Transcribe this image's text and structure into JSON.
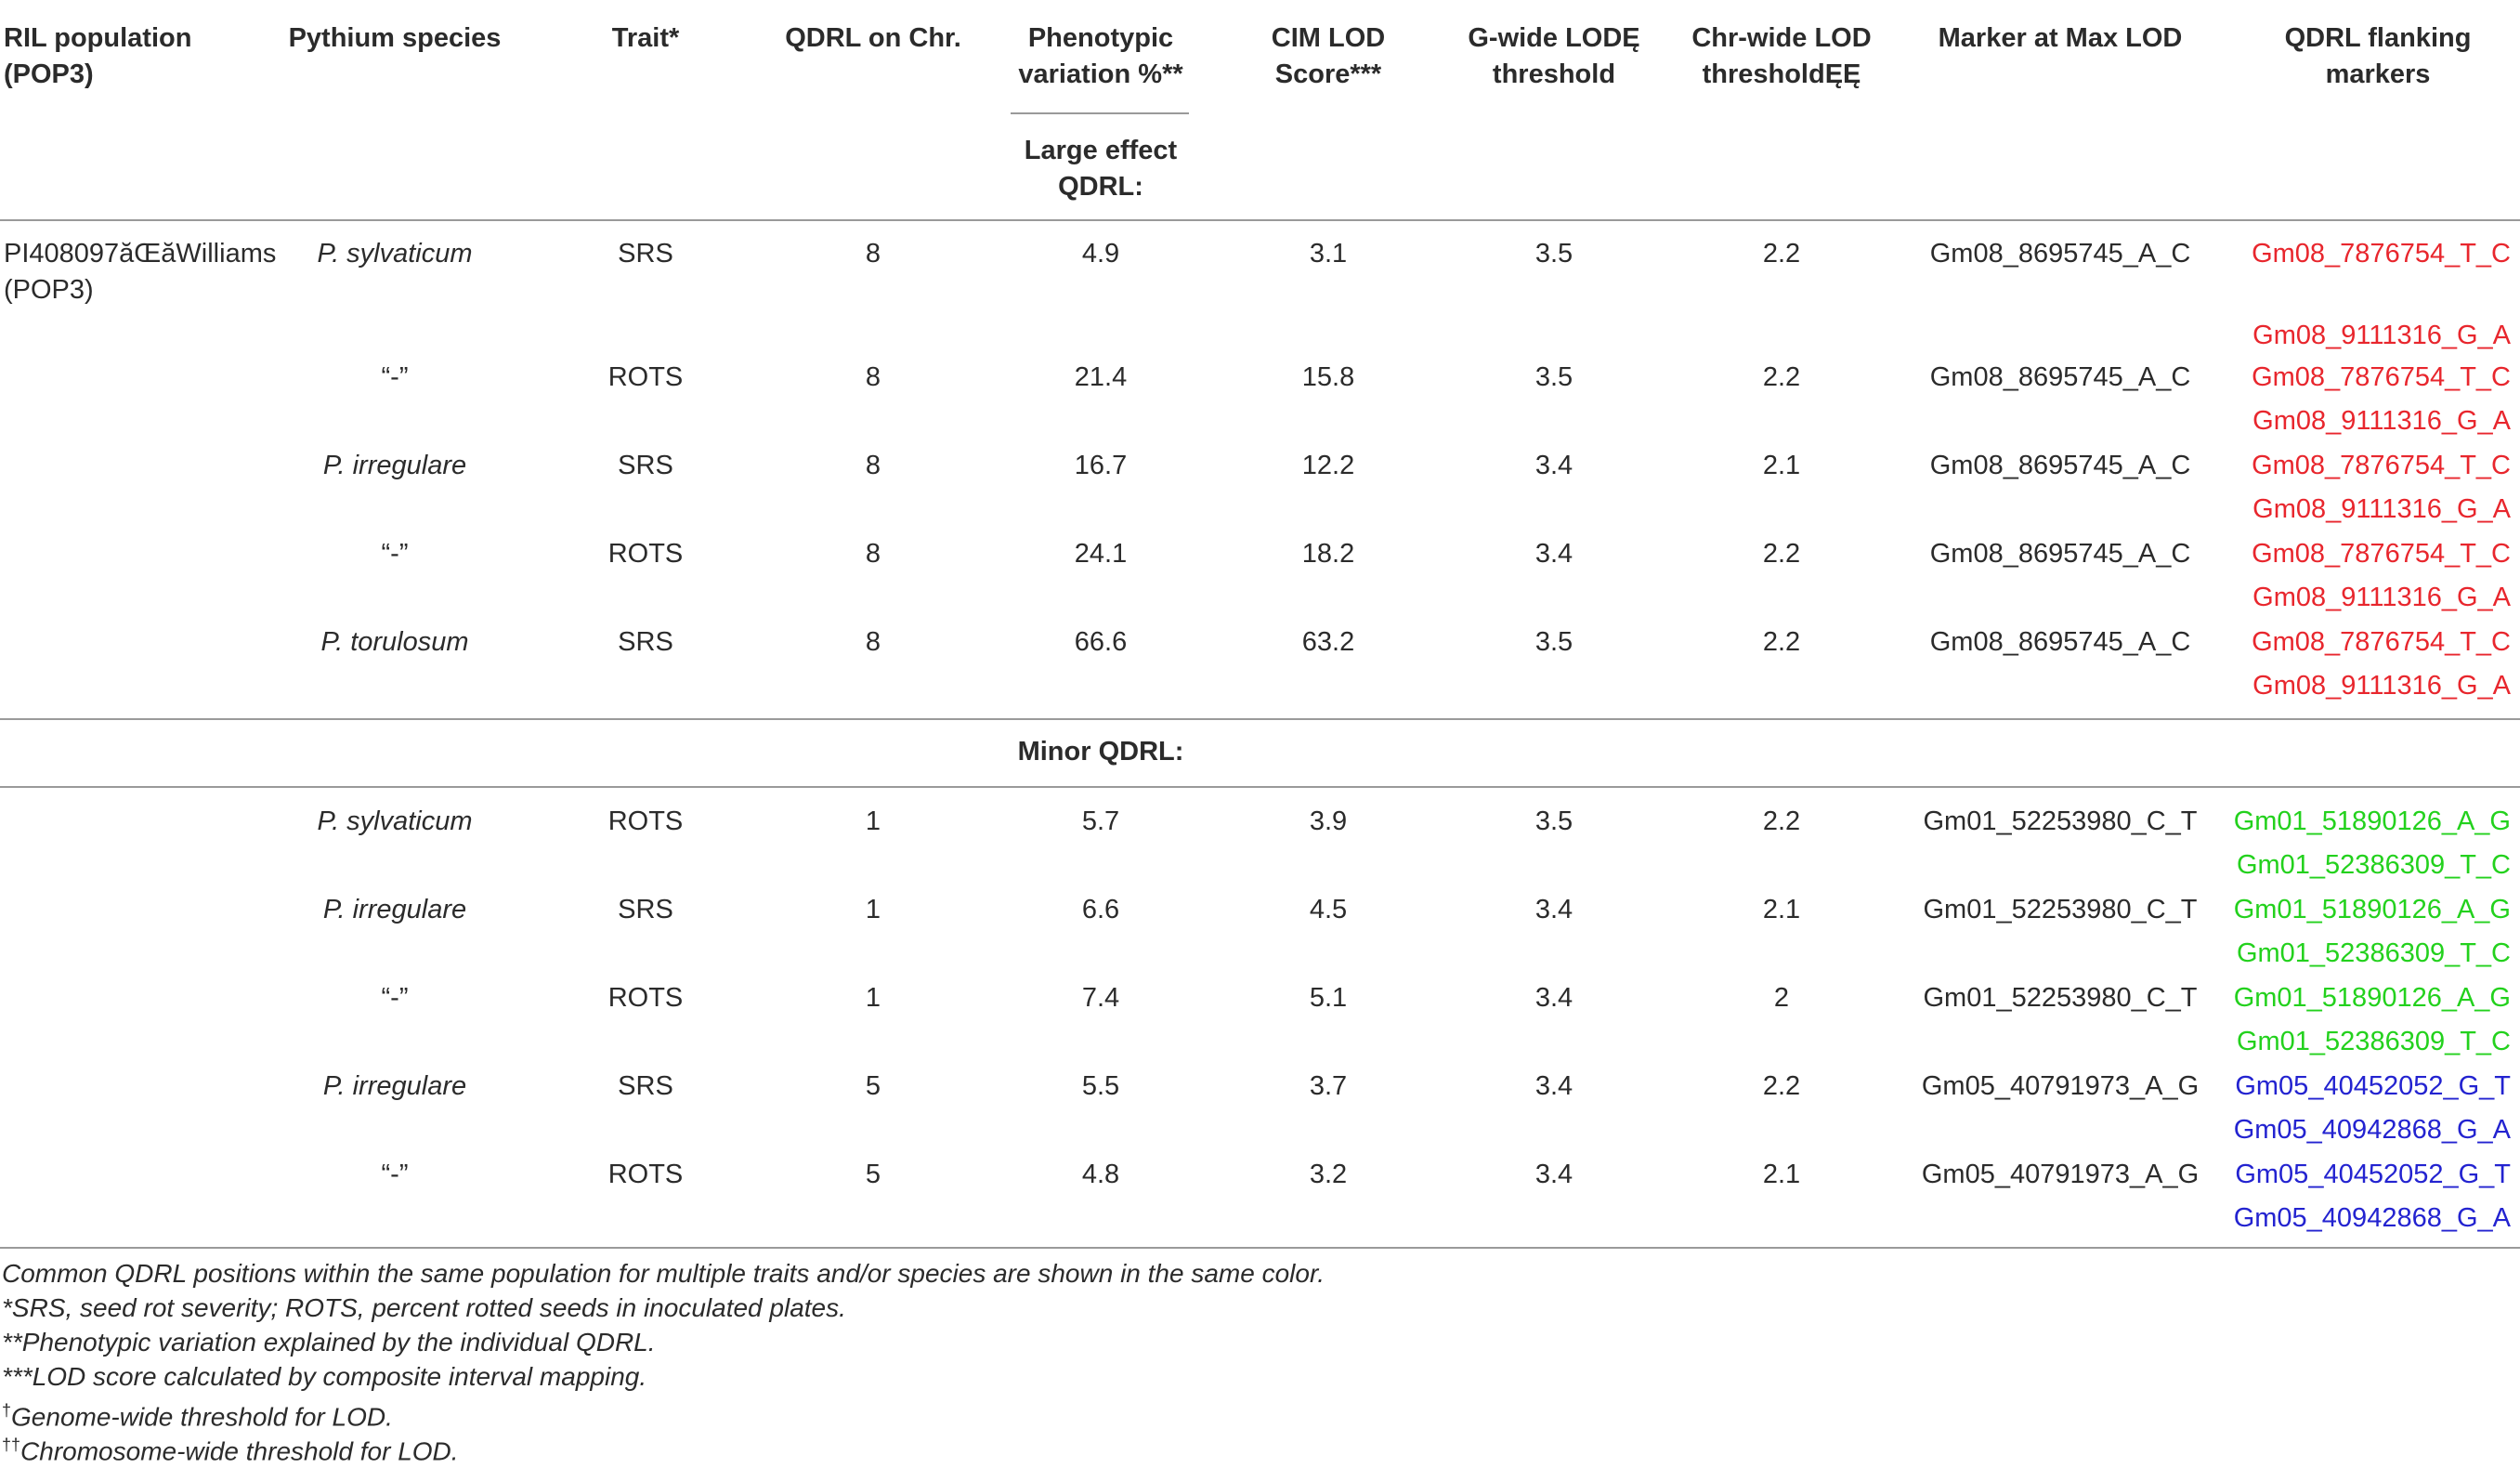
{
  "headers": {
    "ril_population": [
      "RIL population",
      "(POP3)"
    ],
    "pythium_species": "Pythium species",
    "trait": "Trait*",
    "qdrl_on_chr": "QDRL on Chr.",
    "phenotypic_variation": [
      "Phenotypic",
      "variation %**"
    ],
    "cim_lod": [
      "CIM LOD",
      "Score***"
    ],
    "g_wide": [
      "G-wide LODĘ",
      "threshold"
    ],
    "chr_wide": [
      "Chr-wide LOD",
      "thresholdĘĘ"
    ],
    "marker_max_lod": "Marker at Max LOD",
    "flanking_markers": [
      "QDRL flanking",
      "markers"
    ]
  },
  "sections": {
    "large_effect": [
      "Large effect",
      "QDRL:"
    ],
    "minor": "Minor QDRL:"
  },
  "population": [
    "PI408097ăŒăWilliams",
    "(POP3)"
  ],
  "large_rows": [
    {
      "species": "P. sylvaticum",
      "species_italic": true,
      "trait": "SRS",
      "chr": "8",
      "pv": "4.9",
      "cim": "3.1",
      "gw": "3.5",
      "cw": "2.2",
      "marker": "Gm08_8695745_A_C",
      "flank1": "Gm08_7876754_T_C",
      "flank2": "Gm08_9111316_G_A",
      "color": "red"
    },
    {
      "species": "“-”",
      "species_italic": false,
      "trait": "ROTS",
      "chr": "8",
      "pv": "21.4",
      "cim": "15.8",
      "gw": "3.5",
      "cw": "2.2",
      "marker": "Gm08_8695745_A_C",
      "flank1": "Gm08_7876754_T_C",
      "flank2": "Gm08_9111316_G_A",
      "color": "red"
    },
    {
      "species": "P. irregulare",
      "species_italic": true,
      "trait": "SRS",
      "chr": "8",
      "pv": "16.7",
      "cim": "12.2",
      "gw": "3.4",
      "cw": "2.1",
      "marker": "Gm08_8695745_A_C",
      "flank1": "Gm08_7876754_T_C",
      "flank2": "Gm08_9111316_G_A",
      "color": "red"
    },
    {
      "species": "“-”",
      "species_italic": false,
      "trait": "ROTS",
      "chr": "8",
      "pv": "24.1",
      "cim": "18.2",
      "gw": "3.4",
      "cw": "2.2",
      "marker": "Gm08_8695745_A_C",
      "flank1": "Gm08_7876754_T_C",
      "flank2": "Gm08_9111316_G_A",
      "color": "red"
    },
    {
      "species": "P. torulosum",
      "species_italic": true,
      "trait": "SRS",
      "chr": "8",
      "pv": "66.6",
      "cim": "63.2",
      "gw": "3.5",
      "cw": "2.2",
      "marker": "Gm08_8695745_A_C",
      "flank1": "Gm08_7876754_T_C",
      "flank2": "Gm08_9111316_G_A",
      "color": "red"
    }
  ],
  "minor_rows": [
    {
      "species": "P. sylvaticum",
      "species_italic": true,
      "trait": "ROTS",
      "chr": "1",
      "pv": "5.7",
      "cim": "3.9",
      "gw": "3.5",
      "cw": "2.2",
      "marker": "Gm01_52253980_C_T",
      "flank1": "Gm01_51890126_A_G",
      "flank2": "Gm01_52386309_T_C",
      "color": "green"
    },
    {
      "species": "P. irregulare",
      "species_italic": true,
      "trait": "SRS",
      "chr": "1",
      "pv": "6.6",
      "cim": "4.5",
      "gw": "3.4",
      "cw": "2.1",
      "marker": "Gm01_52253980_C_T",
      "flank1": "Gm01_51890126_A_G",
      "flank2": "Gm01_52386309_T_C",
      "color": "green"
    },
    {
      "species": "“-”",
      "species_italic": false,
      "trait": "ROTS",
      "chr": "1",
      "pv": "7.4",
      "cim": "5.1",
      "gw": "3.4",
      "cw": "2",
      "marker": "Gm01_52253980_C_T",
      "flank1": "Gm01_51890126_A_G",
      "flank2": "Gm01_52386309_T_C",
      "color": "green"
    },
    {
      "species": "P. irregulare",
      "species_italic": true,
      "trait": "SRS",
      "chr": "5",
      "pv": "5.5",
      "cim": "3.7",
      "gw": "3.4",
      "cw": "2.2",
      "marker": "Gm05_40791973_A_G",
      "flank1": "Gm05_40452052_G_T",
      "flank2": "Gm05_40942868_G_A",
      "color": "blue"
    },
    {
      "species": "“-”",
      "species_italic": false,
      "trait": "ROTS",
      "chr": "5",
      "pv": "4.8",
      "cim": "3.2",
      "gw": "3.4",
      "cw": "2.1",
      "marker": "Gm05_40791973_A_G",
      "flank1": "Gm05_40452052_G_T",
      "flank2": "Gm05_40942868_G_A",
      "color": "blue"
    }
  ],
  "colors": {
    "red": "#e8262d",
    "green": "#23d11d",
    "blue": "#2323d0"
  },
  "footnotes": {
    "common": "Common QDRL positions within the same population for multiple traits and/or species are shown in the same color.",
    "srs": "*SRS, seed rot severity; ROTS, percent rotted seeds in inoculated plates.",
    "pv": "**Phenotypic variation explained by the individual QDRL.",
    "lod": "***LOD score calculated by composite interval mapping.",
    "genome_mark": "†",
    "genome": "Genome-wide threshold for LOD.",
    "chrom_mark": "††",
    "chrom": "Chromosome-wide threshold for LOD."
  }
}
